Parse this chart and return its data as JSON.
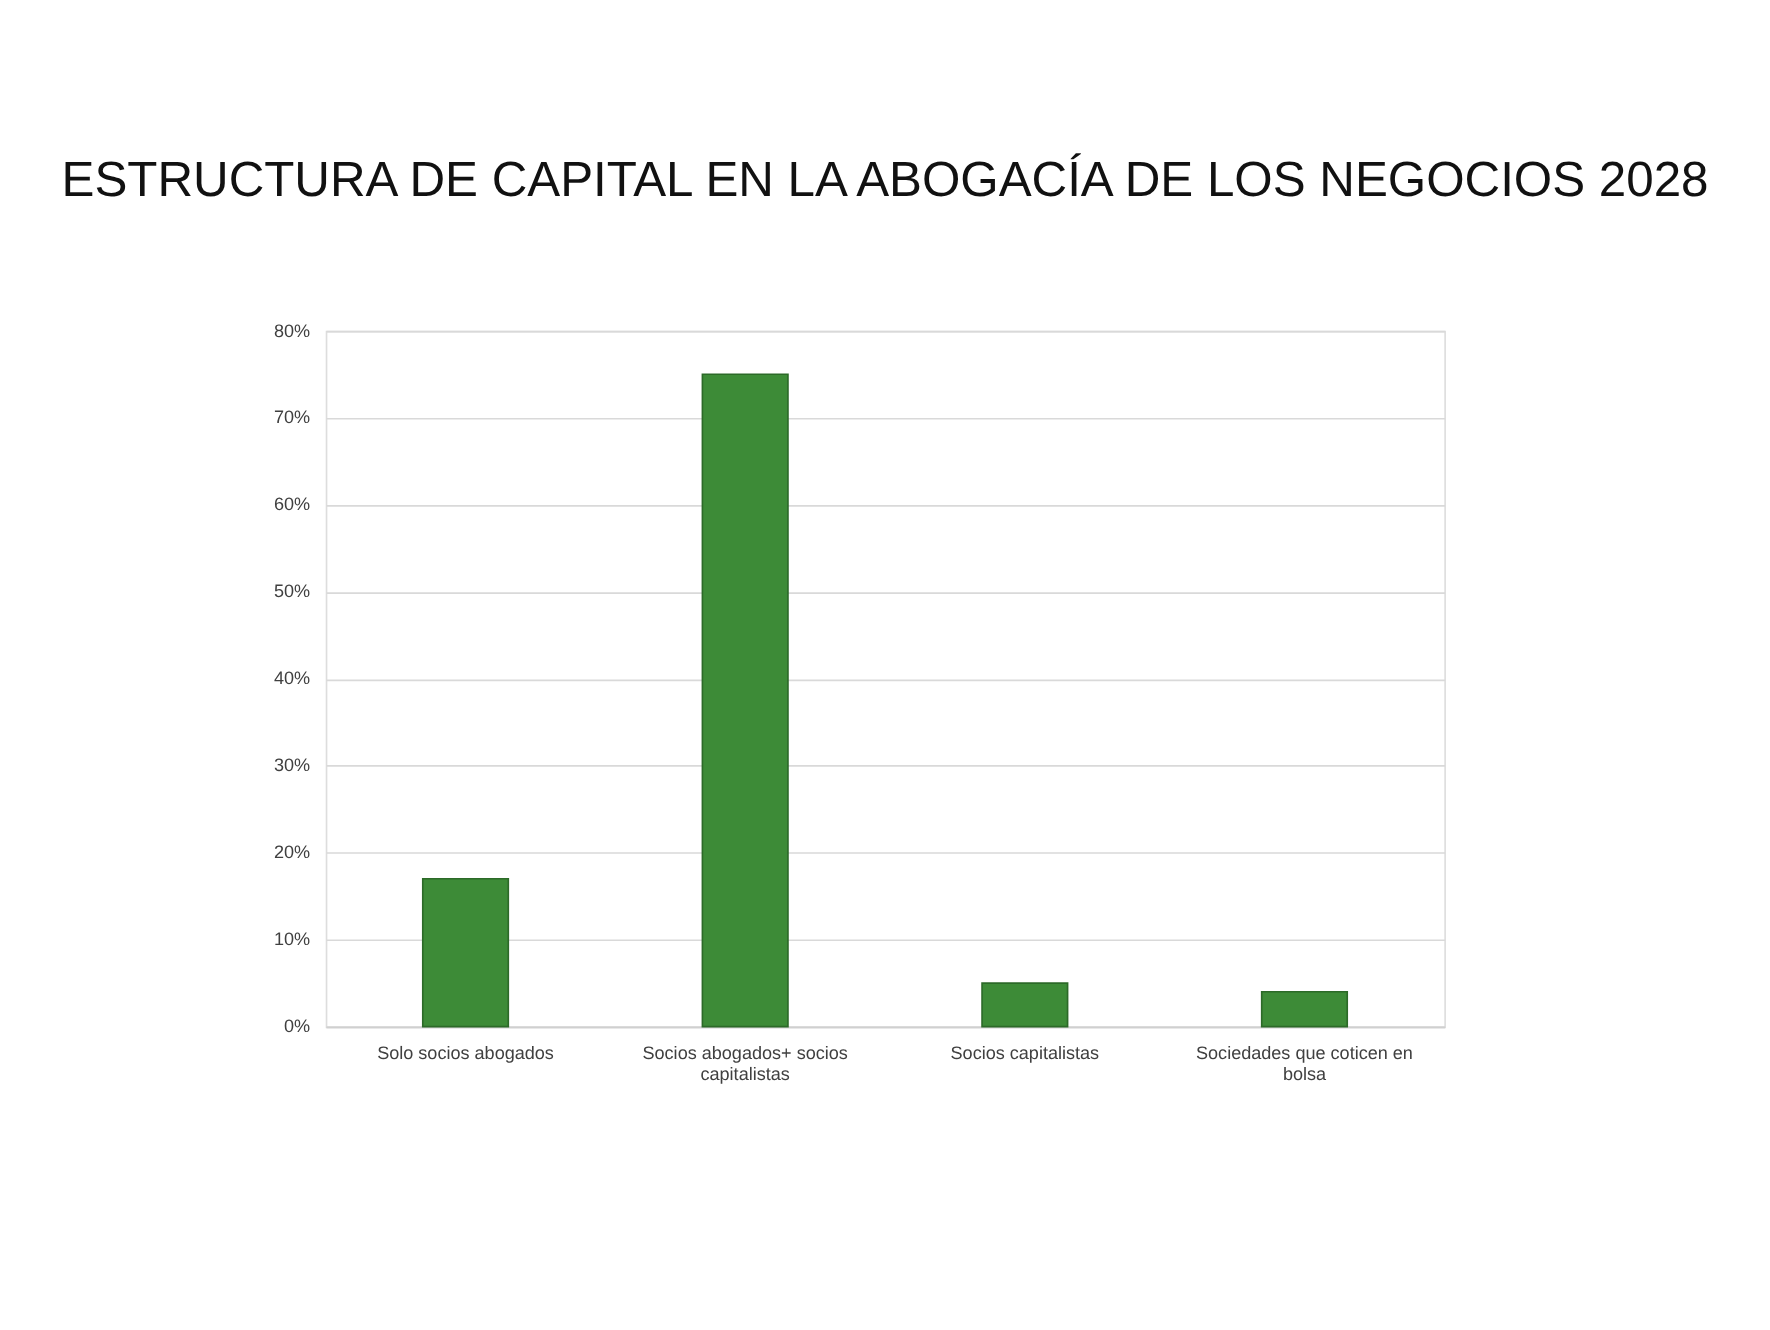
{
  "chart_data": {
    "type": "bar",
    "title": "ESTRUCTURA DE CAPITAL  EN LA ABOGACÍA  DE LOS NEGOCIOS  2028",
    "categories": [
      "Solo socios abogados",
      "Socios abogados+ socios capitalistas",
      "Socios capitalistas",
      "Sociedades que coticen en bolsa"
    ],
    "values": [
      17,
      75,
      5,
      4
    ],
    "color": "#3d8b37",
    "ylim": [
      0,
      80
    ],
    "yticks": [
      {
        "value": 0,
        "label": "0%"
      },
      {
        "value": 10,
        "label": "10%"
      },
      {
        "value": 20,
        "label": "20%"
      },
      {
        "value": 30,
        "label": "30%"
      },
      {
        "value": 40,
        "label": "40%"
      },
      {
        "value": 50,
        "label": "50%"
      },
      {
        "value": 60,
        "label": "60%"
      },
      {
        "value": 70,
        "label": "70%"
      },
      {
        "value": 80,
        "label": "80%"
      }
    ],
    "grid": "y"
  }
}
